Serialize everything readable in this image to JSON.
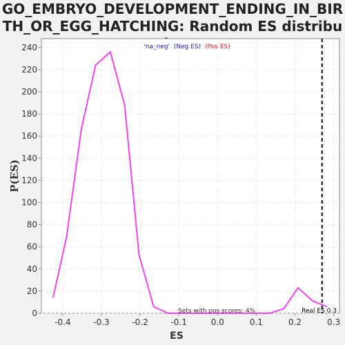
{
  "title": "GO_EMBRYO_DEVELOPMENT_ENDING_IN_BIRTH_OR_EGG_HATCHING: Random ES distribution",
  "colors": {
    "line": "#ee44ee",
    "neg": "#2222cc",
    "pos": "#dd2222",
    "plot_bg": "#ffffff",
    "grid": "#e6e6e6",
    "threshold": "#000000"
  },
  "legend": {
    "name": "'na_neg'",
    "neg_label": "(Neg ES)",
    "pos_label": "(Pos ES)"
  },
  "annotations": {
    "pos_scores": "Sets with pos scores: 4%",
    "real_es": "Real ES 0.3"
  },
  "chart_data": {
    "type": "line",
    "title": "GO_EMBRYO_DEVELOPMENT_ENDING_IN_BIRTH_OR_EGG_HATCHING: Random ES distribution",
    "xlabel": "ES",
    "ylabel": "P(ES)",
    "xlim": [
      -0.455,
      0.315
    ],
    "ylim": [
      0,
      248
    ],
    "xticks": [
      -0.4,
      -0.3,
      -0.2,
      -0.1,
      0.0,
      0.1,
      0.2,
      0.3
    ],
    "xtick_labels": [
      "-0.4",
      "-0.3",
      "-0.2",
      "-0.1",
      "0.0",
      "0.1",
      "0.2",
      "0.3"
    ],
    "yticks": [
      0,
      20,
      40,
      60,
      80,
      100,
      120,
      140,
      160,
      180,
      200,
      220,
      240
    ],
    "grid": true,
    "real_es": 0.27,
    "series": [
      {
        "x": [
          -0.425,
          -0.39,
          -0.352,
          -0.315,
          -0.277,
          -0.24,
          -0.203,
          -0.165,
          -0.128,
          -0.09,
          -0.053,
          -0.016,
          0.022,
          0.059,
          0.096,
          0.134,
          0.171,
          0.208,
          0.246,
          0.283
        ],
        "y": [
          14,
          69,
          166,
          224,
          236,
          188,
          53,
          6,
          0,
          0,
          0,
          0,
          0,
          0,
          0,
          0,
          4,
          23,
          11,
          6
        ]
      }
    ]
  }
}
